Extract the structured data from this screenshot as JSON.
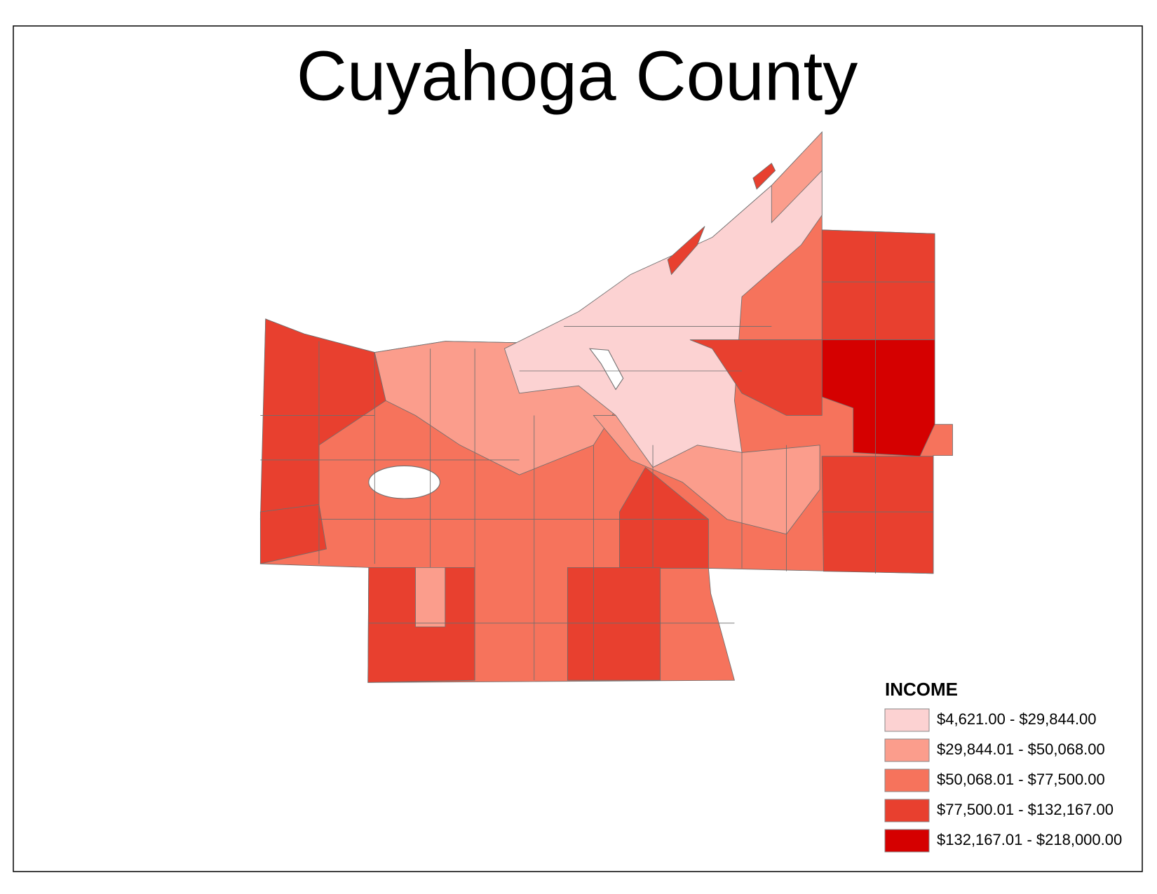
{
  "map": {
    "title": "Cuyahoga County",
    "legend": {
      "title": "INCOME",
      "items": [
        {
          "label": "$4,621.00 - $29,844.00",
          "color": "#fcd2d2"
        },
        {
          "label": "$29,844.01 - $50,068.00",
          "color": "#fb9d8c"
        },
        {
          "label": "$50,068.01 - $77,500.00",
          "color": "#f6735c"
        },
        {
          "label": "$77,500.01 - $132,167.00",
          "color": "#e8402f"
        },
        {
          "label": "$132,167.01 - $218,000.00",
          "color": "#d50000"
        }
      ]
    }
  }
}
